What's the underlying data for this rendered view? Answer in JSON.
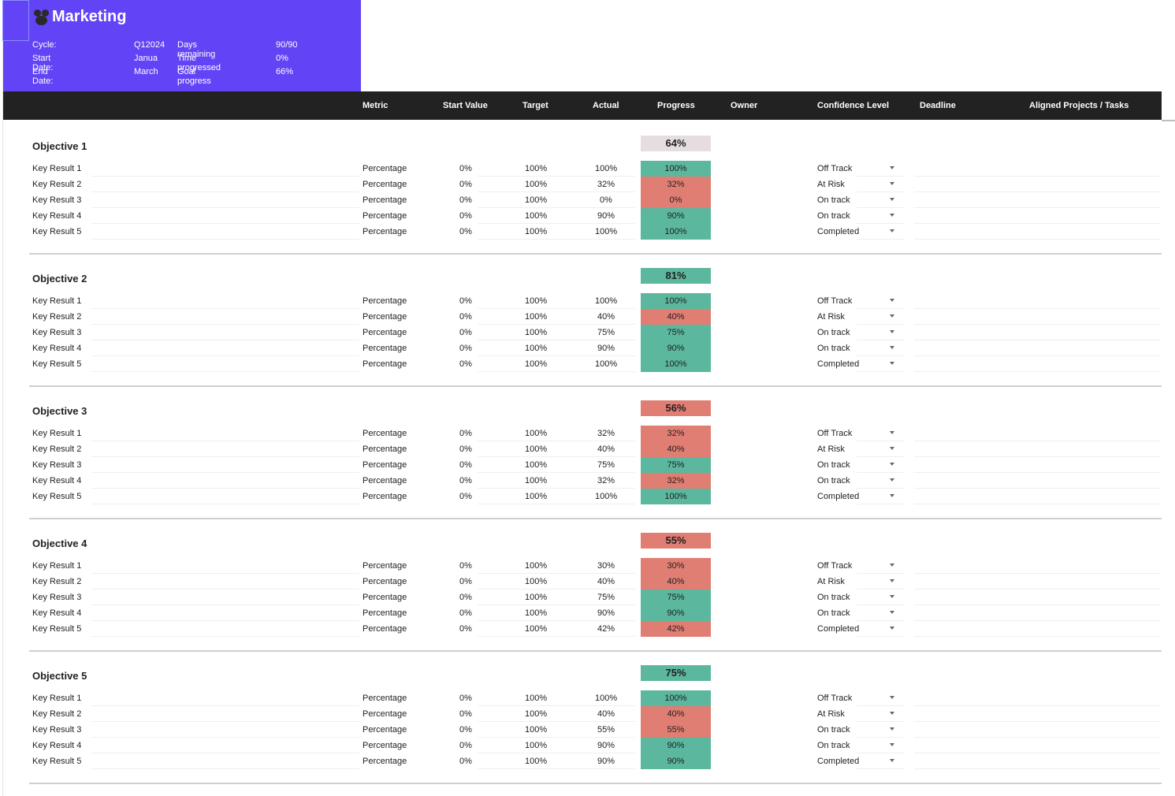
{
  "header": {
    "title": "Marketing",
    "rows": [
      {
        "label": "Cycle:",
        "value": "Q12024",
        "label2": "Days remaining",
        "value2": "90/90"
      },
      {
        "label": "Start Date:",
        "value": "Janua",
        "label2": "Time progressed",
        "value2": "0%"
      },
      {
        "label": "End Date:",
        "value": "March",
        "label2": "Goal progress",
        "value2": "66%"
      }
    ]
  },
  "columns": {
    "metric": "Metric",
    "start_value": "Start Value",
    "target": "Target",
    "actual": "Actual",
    "progress": "Progress",
    "owner": "Owner",
    "confidence": "Confidence Level",
    "deadline": "Deadline",
    "aligned": "Aligned Projects / Tasks"
  },
  "colors": {
    "green": "#5bb79d",
    "red": "#e07e73",
    "neutral": "#e6dede",
    "header_bg": "#6244f6",
    "bar_bg": "#222222"
  },
  "objectives": [
    {
      "name": "Objective 1",
      "progress": "64%",
      "status": "neutral",
      "key_results": [
        {
          "name": "Key Result 1",
          "metric": "Percentage",
          "start": "0%",
          "target": "100%",
          "actual": "100%",
          "progress": "100%",
          "status": "green",
          "confidence": "Off Track"
        },
        {
          "name": "Key Result 2",
          "metric": "Percentage",
          "start": "0%",
          "target": "100%",
          "actual": "32%",
          "progress": "32%",
          "status": "red",
          "confidence": "At Risk"
        },
        {
          "name": "Key Result 3",
          "metric": "Percentage",
          "start": "0%",
          "target": "100%",
          "actual": "0%",
          "progress": "0%",
          "status": "red",
          "confidence": "On track"
        },
        {
          "name": "Key Result 4",
          "metric": "Percentage",
          "start": "0%",
          "target": "100%",
          "actual": "90%",
          "progress": "90%",
          "status": "green",
          "confidence": "On track"
        },
        {
          "name": "Key Result 5",
          "metric": "Percentage",
          "start": "0%",
          "target": "100%",
          "actual": "100%",
          "progress": "100%",
          "status": "green",
          "confidence": "Completed"
        }
      ]
    },
    {
      "name": "Objective 2",
      "progress": "81%",
      "status": "green",
      "key_results": [
        {
          "name": "Key Result 1",
          "metric": "Percentage",
          "start": "0%",
          "target": "100%",
          "actual": "100%",
          "progress": "100%",
          "status": "green",
          "confidence": "Off Track"
        },
        {
          "name": "Key Result 2",
          "metric": "Percentage",
          "start": "0%",
          "target": "100%",
          "actual": "40%",
          "progress": "40%",
          "status": "red",
          "confidence": "At Risk"
        },
        {
          "name": "Key Result 3",
          "metric": "Percentage",
          "start": "0%",
          "target": "100%",
          "actual": "75%",
          "progress": "75%",
          "status": "green",
          "confidence": "On track"
        },
        {
          "name": "Key Result 4",
          "metric": "Percentage",
          "start": "0%",
          "target": "100%",
          "actual": "90%",
          "progress": "90%",
          "status": "green",
          "confidence": "On track"
        },
        {
          "name": "Key Result 5",
          "metric": "Percentage",
          "start": "0%",
          "target": "100%",
          "actual": "100%",
          "progress": "100%",
          "status": "green",
          "confidence": "Completed"
        }
      ]
    },
    {
      "name": "Objective 3",
      "progress": "56%",
      "status": "red",
      "key_results": [
        {
          "name": "Key Result 1",
          "metric": "Percentage",
          "start": "0%",
          "target": "100%",
          "actual": "32%",
          "progress": "32%",
          "status": "red",
          "confidence": "Off Track"
        },
        {
          "name": "Key Result 2",
          "metric": "Percentage",
          "start": "0%",
          "target": "100%",
          "actual": "40%",
          "progress": "40%",
          "status": "red",
          "confidence": "At Risk"
        },
        {
          "name": "Key Result 3",
          "metric": "Percentage",
          "start": "0%",
          "target": "100%",
          "actual": "75%",
          "progress": "75%",
          "status": "green",
          "confidence": "On track"
        },
        {
          "name": "Key Result 4",
          "metric": "Percentage",
          "start": "0%",
          "target": "100%",
          "actual": "32%",
          "progress": "32%",
          "status": "red",
          "confidence": "On track"
        },
        {
          "name": "Key Result 5",
          "metric": "Percentage",
          "start": "0%",
          "target": "100%",
          "actual": "100%",
          "progress": "100%",
          "status": "green",
          "confidence": "Completed"
        }
      ]
    },
    {
      "name": "Objective 4",
      "progress": "55%",
      "status": "red",
      "key_results": [
        {
          "name": "Key Result 1",
          "metric": "Percentage",
          "start": "0%",
          "target": "100%",
          "actual": "30%",
          "progress": "30%",
          "status": "red",
          "confidence": "Off Track"
        },
        {
          "name": "Key Result 2",
          "metric": "Percentage",
          "start": "0%",
          "target": "100%",
          "actual": "40%",
          "progress": "40%",
          "status": "red",
          "confidence": "At Risk"
        },
        {
          "name": "Key Result 3",
          "metric": "Percentage",
          "start": "0%",
          "target": "100%",
          "actual": "75%",
          "progress": "75%",
          "status": "green",
          "confidence": "On track"
        },
        {
          "name": "Key Result 4",
          "metric": "Percentage",
          "start": "0%",
          "target": "100%",
          "actual": "90%",
          "progress": "90%",
          "status": "green",
          "confidence": "On track"
        },
        {
          "name": "Key Result 5",
          "metric": "Percentage",
          "start": "0%",
          "target": "100%",
          "actual": "42%",
          "progress": "42%",
          "status": "red",
          "confidence": "Completed"
        }
      ]
    },
    {
      "name": "Objective 5",
      "progress": "75%",
      "status": "green",
      "key_results": [
        {
          "name": "Key Result 1",
          "metric": "Percentage",
          "start": "0%",
          "target": "100%",
          "actual": "100%",
          "progress": "100%",
          "status": "green",
          "confidence": "Off Track"
        },
        {
          "name": "Key Result 2",
          "metric": "Percentage",
          "start": "0%",
          "target": "100%",
          "actual": "40%",
          "progress": "40%",
          "status": "red",
          "confidence": "At Risk"
        },
        {
          "name": "Key Result 3",
          "metric": "Percentage",
          "start": "0%",
          "target": "100%",
          "actual": "55%",
          "progress": "55%",
          "status": "red",
          "confidence": "On track"
        },
        {
          "name": "Key Result 4",
          "metric": "Percentage",
          "start": "0%",
          "target": "100%",
          "actual": "90%",
          "progress": "90%",
          "status": "green",
          "confidence": "On track"
        },
        {
          "name": "Key Result 5",
          "metric": "Percentage",
          "start": "0%",
          "target": "100%",
          "actual": "90%",
          "progress": "90%",
          "status": "green",
          "confidence": "Completed"
        }
      ]
    }
  ]
}
